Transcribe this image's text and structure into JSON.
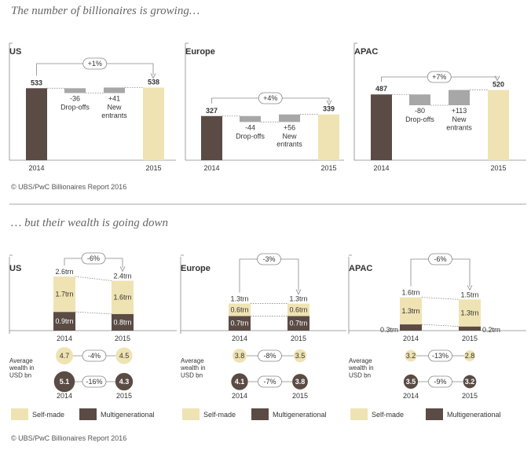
{
  "header": {
    "title_top": "The number of billionaires is growing…",
    "title_bottom": "… but their wealth is going down",
    "source_top": "© UBS/PwC Billionaires Report 2016",
    "source_bottom": "© UBS/PwC Billionaires Report 2016"
  },
  "colors": {
    "self_made": "#efe3b3",
    "multigenerational": "#5a4b45",
    "change": "#a7a7a7",
    "line": "#888888"
  },
  "chart_data": [
    {
      "type": "bar",
      "subtype": "waterfall",
      "region": "US",
      "categories": [
        "2014",
        "Drop-offs",
        "New entrants",
        "2015"
      ],
      "values": [
        533,
        -36,
        41,
        538
      ],
      "value_labels": [
        "533",
        "-36",
        "+41",
        "538"
      ],
      "category_labels": [
        "2014",
        "Drop-offs",
        "New\nentrants",
        "2015"
      ],
      "change_label": "+1%"
    },
    {
      "type": "bar",
      "subtype": "waterfall",
      "region": "Europe",
      "categories": [
        "2014",
        "Drop-offs",
        "New entrants",
        "2015"
      ],
      "values": [
        327,
        -44,
        56,
        339
      ],
      "value_labels": [
        "327",
        "-44",
        "+56",
        "339"
      ],
      "category_labels": [
        "2014",
        "Drop-offs",
        "New\nentrants",
        "2015"
      ],
      "change_label": "+4%"
    },
    {
      "type": "bar",
      "subtype": "waterfall",
      "region": "APAC",
      "categories": [
        "2014",
        "Drop-offs",
        "New entrants",
        "2015"
      ],
      "values": [
        487,
        -80,
        113,
        520
      ],
      "value_labels": [
        "487",
        "-80",
        "+113",
        "520"
      ],
      "category_labels": [
        "2014",
        "Drop-offs",
        "New\nentrants",
        "2015"
      ],
      "change_label": "+7%"
    },
    {
      "type": "bar",
      "subtype": "stacked",
      "region": "US",
      "categories": [
        "2014",
        "2015"
      ],
      "series": [
        {
          "name": "Multigenerational",
          "values": [
            0.9,
            0.8
          ],
          "labels": [
            "0.9trn",
            "0.8trn"
          ]
        },
        {
          "name": "Self-made",
          "values": [
            1.7,
            1.6
          ],
          "labels": [
            "1.7trn",
            "1.6trn"
          ]
        }
      ],
      "totals": [
        2.6,
        2.4
      ],
      "total_labels": [
        "2.6trn",
        "2.4trn"
      ],
      "change_label": "-6%",
      "average_wealth_label": "Average\nwealth in\nUSD bn",
      "average_self_made": {
        "values": [
          4.7,
          4.5
        ],
        "labels": [
          "4.7",
          "4.5"
        ],
        "change": "-4%"
      },
      "average_multigenerational": {
        "values": [
          5.1,
          4.3
        ],
        "labels": [
          "5.1",
          "4.3"
        ],
        "change": "-16%"
      }
    },
    {
      "type": "bar",
      "subtype": "stacked",
      "region": "Europe",
      "categories": [
        "2014",
        "2015"
      ],
      "series": [
        {
          "name": "Multigenerational",
          "values": [
            0.7,
            0.7
          ],
          "labels": [
            "0.7trn",
            "0.7trn"
          ]
        },
        {
          "name": "Self-made",
          "values": [
            0.6,
            0.6
          ],
          "labels": [
            "0.6trn",
            "0.6trn"
          ]
        }
      ],
      "totals": [
        1.3,
        1.3
      ],
      "total_labels": [
        "1.3trn",
        "1.3trn"
      ],
      "change_label": "-3%",
      "average_wealth_label": "Average\nwealth in\nUSD bn",
      "average_self_made": {
        "values": [
          3.8,
          3.5
        ],
        "labels": [
          "3.8",
          "3.5"
        ],
        "change": "-8%"
      },
      "average_multigenerational": {
        "values": [
          4.1,
          3.8
        ],
        "labels": [
          "4.1",
          "3.8"
        ],
        "change": "-7%"
      }
    },
    {
      "type": "bar",
      "subtype": "stacked",
      "region": "APAC",
      "categories": [
        "2014",
        "2015"
      ],
      "series": [
        {
          "name": "Multigenerational",
          "values": [
            0.3,
            0.2
          ],
          "labels": [
            "0.3trn",
            "0.2trn"
          ]
        },
        {
          "name": "Self-made",
          "values": [
            1.3,
            1.3
          ],
          "labels": [
            "1.3trn",
            "1.3trn"
          ]
        }
      ],
      "totals": [
        1.6,
        1.5
      ],
      "total_labels": [
        "1.6trn",
        "1.5trn"
      ],
      "change_label": "-6%",
      "average_wealth_label": "Average\nwealth in\nUSD bn",
      "average_self_made": {
        "values": [
          3.2,
          2.8
        ],
        "labels": [
          "3.2",
          "2.8"
        ],
        "change": "-13%"
      },
      "average_multigenerational": {
        "values": [
          3.5,
          3.2
        ],
        "labels": [
          "3.5",
          "3.2"
        ],
        "change": "-9%"
      }
    }
  ],
  "legend": {
    "self_made": "Self-made",
    "multigenerational": "Multigenerational"
  }
}
